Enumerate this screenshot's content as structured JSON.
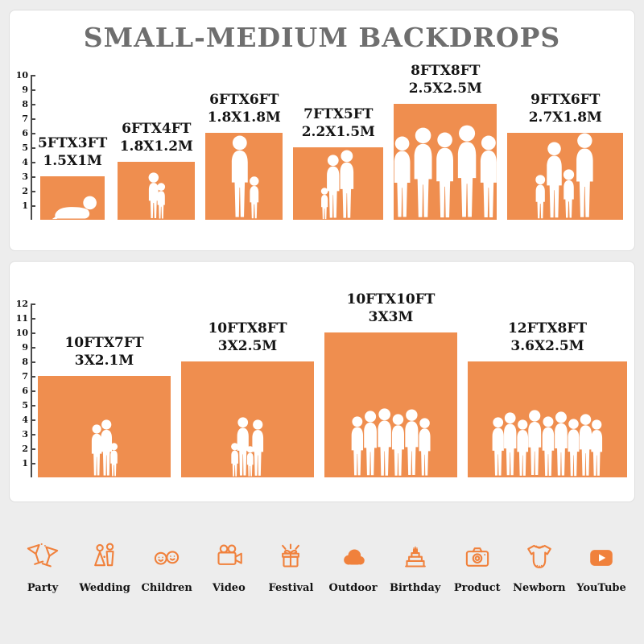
{
  "colors": {
    "background": "#EDEDED",
    "panel": "#FFFFFF",
    "accent_orange": "#EF8E4F",
    "icon_orange": "#F0813C",
    "title_gray": "#6E6E6E",
    "text_black": "#141414"
  },
  "chart_data": {
    "type": "bar",
    "title": "SMALL-MEDIUM BACKDROPS",
    "axis_unit": "ft",
    "panels": [
      {
        "name": "small-medium-sizes",
        "axis_max": 10,
        "bars": [
          {
            "size_ft": "5FTX3FT",
            "size_m": "1.5X1M",
            "width_ft": 5,
            "height_ft": 3,
            "figures": [
              {
                "type": "crawling-baby",
                "h": 0.55
              }
            ]
          },
          {
            "size_ft": "6FTX4FT",
            "size_m": "1.8X1.2M",
            "width_ft": 6,
            "height_ft": 4,
            "figures": [
              {
                "type": "child",
                "h": 0.82
              },
              {
                "type": "child",
                "h": 0.64
              }
            ]
          },
          {
            "size_ft": "6FTX6FT",
            "size_m": "1.8X1.8M",
            "width_ft": 6,
            "height_ft": 6,
            "figures": [
              {
                "type": "adult",
                "h": 0.97
              },
              {
                "type": "child",
                "h": 0.5
              }
            ]
          },
          {
            "size_ft": "7FTX5FT",
            "size_m": "2.2X1.5M",
            "width_ft": 7,
            "height_ft": 5,
            "figures": [
              {
                "type": "child",
                "h": 0.45
              },
              {
                "type": "adult",
                "h": 0.9
              },
              {
                "type": "adult",
                "h": 0.97
              }
            ]
          },
          {
            "size_ft": "8FTX8FT",
            "size_m": "2.5X2.5M",
            "width_ft": 8,
            "height_ft": 8,
            "figures": [
              {
                "type": "adult",
                "h": 0.72
              },
              {
                "type": "adult",
                "h": 0.8
              },
              {
                "type": "adult",
                "h": 0.76
              },
              {
                "type": "adult",
                "h": 0.82
              },
              {
                "type": "adult",
                "h": 0.73
              }
            ]
          },
          {
            "size_ft": "9FTX6FT",
            "size_m": "2.7X1.8M",
            "width_ft": 9,
            "height_ft": 6,
            "figures": [
              {
                "type": "child",
                "h": 0.52
              },
              {
                "type": "adult",
                "h": 0.9
              },
              {
                "type": "child",
                "h": 0.58
              },
              {
                "type": "adult",
                "h": 1.0
              }
            ]
          }
        ]
      },
      {
        "name": "medium-large-sizes",
        "axis_max": 12,
        "bars": [
          {
            "size_ft": "10FTX7FT",
            "size_m": "3X2.1M",
            "width_ft": 10,
            "height_ft": 7,
            "figures": [
              {
                "type": "adult",
                "h": 0.52
              },
              {
                "type": "adult",
                "h": 0.57
              },
              {
                "type": "child",
                "h": 0.34
              }
            ]
          },
          {
            "size_ft": "10FTX8FT",
            "size_m": "3X2.5M",
            "width_ft": 10,
            "height_ft": 8,
            "figures": [
              {
                "type": "child",
                "h": 0.3
              },
              {
                "type": "adult",
                "h": 0.52
              },
              {
                "type": "child",
                "h": 0.27
              },
              {
                "type": "adult",
                "h": 0.5
              }
            ]
          },
          {
            "size_ft": "10FTX10FT",
            "size_m": "3X3M",
            "width_ft": 10,
            "height_ft": 10,
            "figures": [
              {
                "type": "adult",
                "h": 0.42
              },
              {
                "type": "adult",
                "h": 0.46
              },
              {
                "type": "adult",
                "h": 0.48
              },
              {
                "type": "adult",
                "h": 0.44
              },
              {
                "type": "adult",
                "h": 0.47
              },
              {
                "type": "adult",
                "h": 0.41
              }
            ]
          },
          {
            "size_ft": "12FTX8FT",
            "size_m": "3.6X2.5M",
            "width_ft": 12,
            "height_ft": 8,
            "figures": [
              {
                "type": "adult",
                "h": 0.52
              },
              {
                "type": "adult",
                "h": 0.56
              },
              {
                "type": "adult",
                "h": 0.5
              },
              {
                "type": "adult",
                "h": 0.58
              },
              {
                "type": "adult",
                "h": 0.53
              },
              {
                "type": "adult",
                "h": 0.57
              },
              {
                "type": "adult",
                "h": 0.51
              },
              {
                "type": "adult",
                "h": 0.55
              },
              {
                "type": "adult",
                "h": 0.5
              }
            ]
          }
        ]
      }
    ]
  },
  "icons": [
    {
      "name": "party-icon",
      "label": "Party"
    },
    {
      "name": "wedding-icon",
      "label": "Wedding"
    },
    {
      "name": "children-icon",
      "label": "Children"
    },
    {
      "name": "video-icon",
      "label": "Video"
    },
    {
      "name": "festival-icon",
      "label": "Festival"
    },
    {
      "name": "outdoor-icon",
      "label": "Outdoor"
    },
    {
      "name": "birthday-icon",
      "label": "Birthday"
    },
    {
      "name": "product-icon",
      "label": "Product"
    },
    {
      "name": "newborn-icon",
      "label": "Newborn"
    },
    {
      "name": "youtube-icon",
      "label": "YouTube"
    }
  ]
}
